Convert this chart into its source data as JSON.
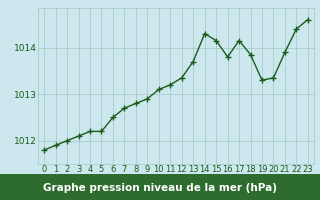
{
  "x": [
    0,
    1,
    2,
    3,
    4,
    5,
    6,
    7,
    8,
    9,
    10,
    11,
    12,
    13,
    14,
    15,
    16,
    17,
    18,
    19,
    20,
    21,
    22,
    23
  ],
  "y": [
    1011.8,
    1011.9,
    1012.0,
    1012.1,
    1012.2,
    1012.2,
    1012.5,
    1012.7,
    1012.8,
    1012.9,
    1013.1,
    1013.2,
    1013.35,
    1013.7,
    1014.3,
    1014.15,
    1013.8,
    1014.15,
    1013.85,
    1013.3,
    1013.35,
    1013.9,
    1014.4,
    1014.6
  ],
  "line_color": "#1a5c1a",
  "marker": "+",
  "markersize": 4,
  "linewidth": 1.0,
  "bg_color": "#cce8ee",
  "grid_color": "#aacccc",
  "xlabel": "Graphe pression niveau de la mer (hPa)",
  "xlabel_color": "#ffffff",
  "xlabel_fontsize": 7.5,
  "tick_color": "#1a5c1a",
  "tick_fontsize": 6,
  "ytick_fontsize": 6.5,
  "yticks": [
    1012,
    1013,
    1014
  ],
  "ylim": [
    1011.5,
    1014.85
  ],
  "xlim": [
    -0.5,
    23.5
  ],
  "bottom_bar_color": "#2e6b2e",
  "xtick_labels": [
    "0",
    "1",
    "2",
    "3",
    "4",
    "5",
    "6",
    "7",
    "8",
    "9",
    "10",
    "11",
    "12",
    "13",
    "14",
    "15",
    "16",
    "17",
    "18",
    "19",
    "20",
    "21",
    "22",
    "23"
  ]
}
